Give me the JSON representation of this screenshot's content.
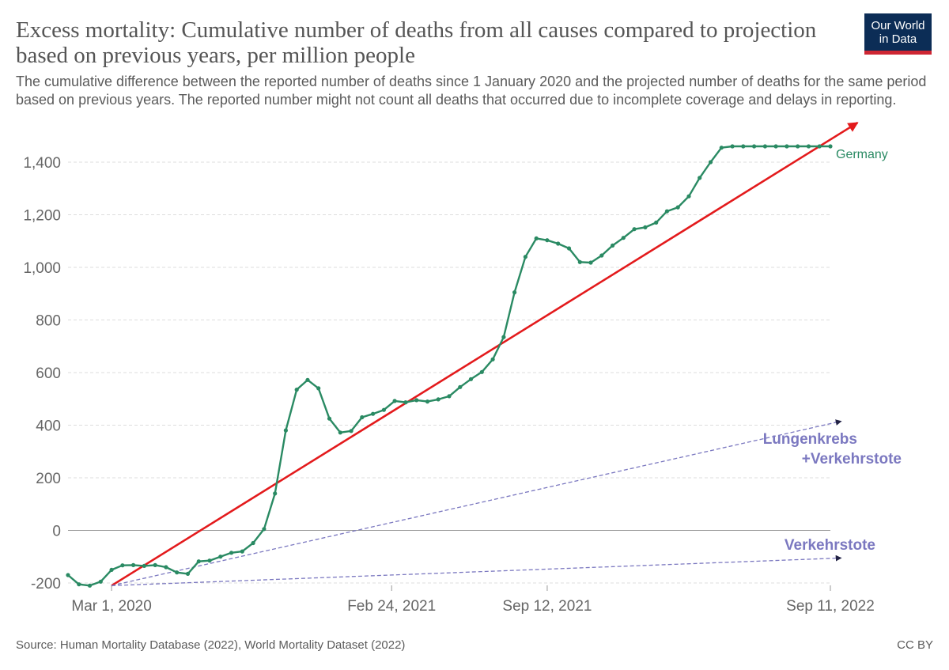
{
  "header": {
    "title": "Excess mortality: Cumulative number of deaths from all causes compared to projection based on previous years, per million people",
    "subtitle": "The cumulative difference between the reported number of deaths since 1 January 2020 and the projected number of deaths for the same period based on previous years. The reported number might not count all deaths that occurred due to incomplete coverage and delays in reporting.",
    "logo_line1": "Our World",
    "logo_line2": "in Data"
  },
  "footer": {
    "source": "Source: Human Mortality Database (2022), World Mortality Dataset (2022)",
    "license": "CC BY"
  },
  "colors": {
    "series": "#2a8a63",
    "trend_arrow": "#e31a1c",
    "annotation": "#7b78c0",
    "grid": "#dddddd"
  },
  "chart_data": {
    "type": "line",
    "title": "Excess mortality: Cumulative number of deaths from all causes compared to projection based on previous years, per million people",
    "ylim": [
      -200,
      1460
    ],
    "yticks": [
      -200,
      0,
      200,
      400,
      600,
      800,
      1000,
      1200,
      1400
    ],
    "ytick_labels": [
      "-200",
      "0",
      "200",
      "400",
      "600",
      "800",
      "1,000",
      "1,200",
      "1,400"
    ],
    "xlim": [
      "2020-01-05",
      "2022-09-11"
    ],
    "xticks": [
      "2020-03-01",
      "2021-02-24",
      "2021-09-12",
      "2022-09-11"
    ],
    "xtick_labels": [
      "Mar 1, 2020",
      "Feb 24, 2021",
      "Sep 12, 2021",
      "Sep 11, 2022"
    ],
    "grid": "horizontal dashed",
    "legend": "inline label at line end",
    "series": [
      {
        "name": "Germany",
        "x": [
          "2020-01-05",
          "2020-01-19",
          "2020-02-02",
          "2020-02-16",
          "2020-03-01",
          "2020-03-15",
          "2020-03-29",
          "2020-04-12",
          "2020-04-26",
          "2020-05-10",
          "2020-05-24",
          "2020-06-07",
          "2020-06-21",
          "2020-07-05",
          "2020-07-19",
          "2020-08-02",
          "2020-08-16",
          "2020-08-30",
          "2020-09-13",
          "2020-09-27",
          "2020-10-11",
          "2020-10-25",
          "2020-11-08",
          "2020-11-22",
          "2020-12-06",
          "2020-12-20",
          "2021-01-03",
          "2021-01-17",
          "2021-01-31",
          "2021-02-14",
          "2021-02-28",
          "2021-03-14",
          "2021-03-28",
          "2021-04-11",
          "2021-04-25",
          "2021-05-09",
          "2021-05-23",
          "2021-06-06",
          "2021-06-20",
          "2021-07-04",
          "2021-07-18",
          "2021-08-01",
          "2021-08-15",
          "2021-08-29",
          "2021-09-12",
          "2021-09-26",
          "2021-10-10",
          "2021-10-24",
          "2021-11-07",
          "2021-11-21",
          "2021-12-05",
          "2021-12-19",
          "2022-01-02",
          "2022-01-16",
          "2022-01-30",
          "2022-02-13",
          "2022-02-27",
          "2022-03-13",
          "2022-03-27",
          "2022-04-10",
          "2022-04-24",
          "2022-05-08",
          "2022-05-22",
          "2022-06-05",
          "2022-06-19",
          "2022-07-03",
          "2022-07-17",
          "2022-07-31",
          "2022-08-14",
          "2022-08-28",
          "2022-09-11"
        ],
        "values": [
          -170,
          -205,
          -210,
          -195,
          -150,
          -133,
          -132,
          -135,
          -132,
          -140,
          -160,
          -165,
          -118,
          -115,
          -100,
          -85,
          -80,
          -48,
          5,
          140,
          380,
          535,
          572,
          540,
          425,
          372,
          378,
          430,
          443,
          458,
          492,
          487,
          495,
          490,
          498,
          510,
          545,
          575,
          602,
          650,
          735,
          905,
          1040,
          1110,
          1103,
          1090,
          1072,
          1020,
          1018,
          1045,
          1083,
          1112,
          1145,
          1152,
          1170,
          1213,
          1228,
          1270,
          1340,
          1400,
          1455,
          1460,
          1460,
          1460,
          1460,
          1460,
          1460,
          1460,
          1460,
          1460,
          1460
        ]
      }
    ],
    "overlays": [
      {
        "name": "trend_arrow",
        "from": [
          "2020-03-01",
          -210
        ],
        "to": [
          "2022-10-16",
          1550
        ]
      },
      {
        "name": "lungenkrebs_arrow",
        "from": [
          "2020-03-01",
          -210
        ],
        "to": [
          "2022-09-25",
          415
        ]
      },
      {
        "name": "verkehrstote_arrow",
        "from": [
          "2020-03-01",
          -210
        ],
        "to": [
          "2022-09-25",
          -105
        ]
      }
    ],
    "annotations": [
      {
        "line1": "Lungenkrebs",
        "line2": "+Verkehrstote"
      },
      {
        "line1": "Verkehrstote"
      }
    ]
  }
}
